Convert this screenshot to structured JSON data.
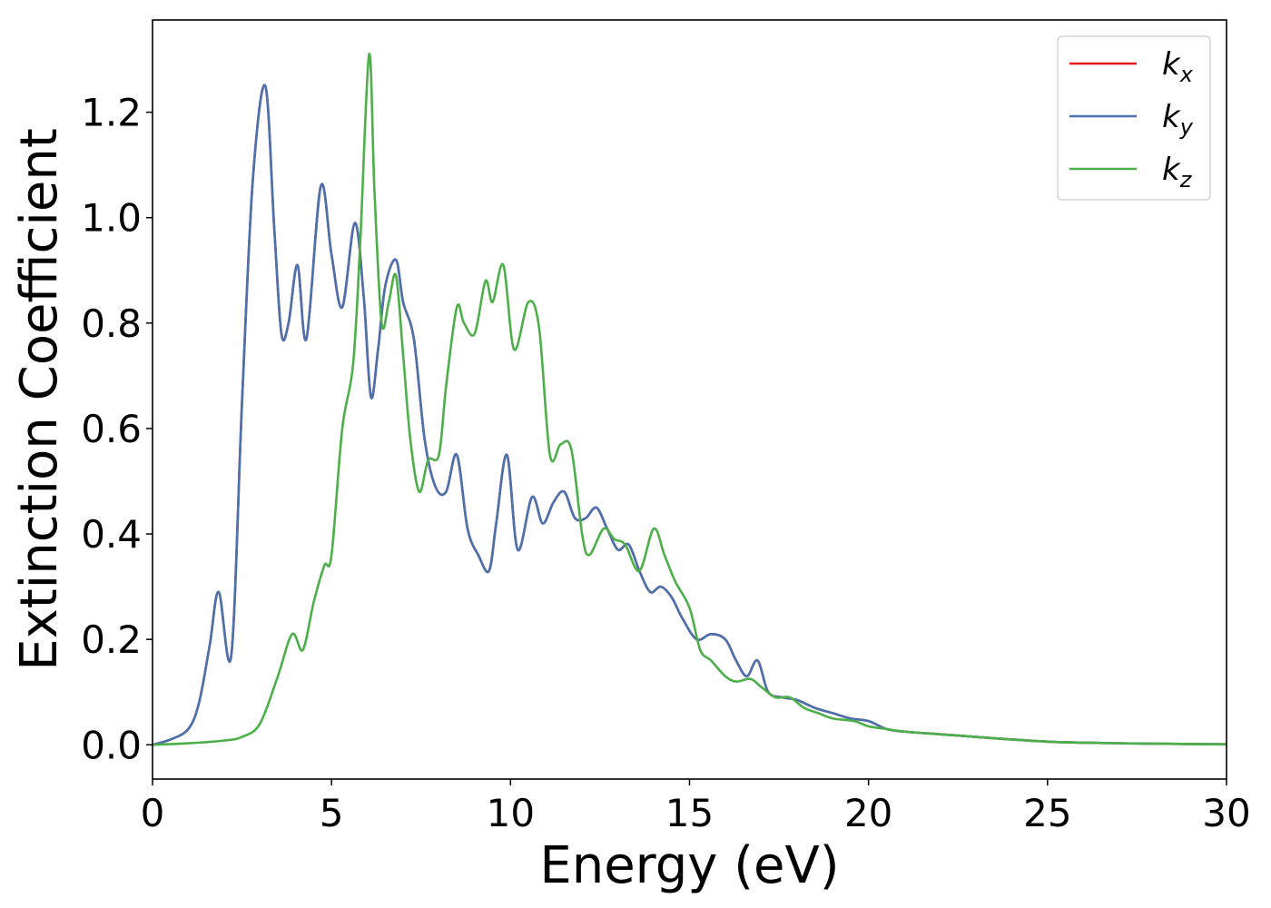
{
  "chart_data": {
    "type": "line",
    "xlabel": "Energy (eV)",
    "ylabel": "Extinction Coefficient",
    "xlim": [
      0,
      30
    ],
    "ylim": [
      -0.065,
      1.375
    ],
    "xticks": [
      0,
      5,
      10,
      15,
      20,
      25,
      30
    ],
    "xtick_labels": [
      "0",
      "5",
      "10",
      "15",
      "20",
      "25",
      "30"
    ],
    "yticks": [
      0.0,
      0.2,
      0.4,
      0.6,
      0.8,
      1.0,
      1.2
    ],
    "ytick_labels": [
      "0.0",
      "0.2",
      "0.4",
      "0.6",
      "0.8",
      "1.0",
      "1.2"
    ],
    "grid": false,
    "legend_position": "top-right",
    "series": [
      {
        "name": "k_x",
        "label_main": "k",
        "label_sub": "x",
        "color": "#e41a1c",
        "x": [
          0,
          0.5,
          1.0,
          1.3,
          1.6,
          1.85,
          2.2,
          2.5,
          2.8,
          3.15,
          3.4,
          3.6,
          3.8,
          4.05,
          4.3,
          4.7,
          5.0,
          5.3,
          5.65,
          5.9,
          6.1,
          6.3,
          6.5,
          6.8,
          7.0,
          7.3,
          7.6,
          7.9,
          8.2,
          8.5,
          8.8,
          9.1,
          9.4,
          9.6,
          9.9,
          10.2,
          10.6,
          10.9,
          11.2,
          11.5,
          11.8,
          12.1,
          12.4,
          12.7,
          13.0,
          13.3,
          13.6,
          13.9,
          14.2,
          14.5,
          14.8,
          15.2,
          15.6,
          16.0,
          16.3,
          16.6,
          16.9,
          17.2,
          17.6,
          18.0,
          18.5,
          19.0,
          19.5,
          20.0,
          20.5,
          21.0,
          22.0,
          23.0,
          24.0,
          25.0,
          26.0,
          28.0,
          30.0
        ],
        "values": [
          0,
          0.01,
          0.03,
          0.08,
          0.19,
          0.29,
          0.17,
          0.65,
          1.07,
          1.25,
          0.98,
          0.78,
          0.8,
          0.91,
          0.77,
          1.06,
          0.93,
          0.83,
          0.99,
          0.85,
          0.66,
          0.75,
          0.87,
          0.92,
          0.84,
          0.77,
          0.58,
          0.49,
          0.48,
          0.55,
          0.41,
          0.36,
          0.33,
          0.42,
          0.55,
          0.37,
          0.47,
          0.42,
          0.46,
          0.48,
          0.43,
          0.43,
          0.45,
          0.41,
          0.37,
          0.38,
          0.33,
          0.29,
          0.3,
          0.28,
          0.24,
          0.2,
          0.21,
          0.2,
          0.16,
          0.13,
          0.16,
          0.1,
          0.09,
          0.085,
          0.07,
          0.06,
          0.05,
          0.045,
          0.03,
          0.025,
          0.02,
          0.015,
          0.01,
          0.006,
          0.004,
          0.002,
          0.001
        ]
      },
      {
        "name": "k_y",
        "label_main": "k",
        "label_sub": "y",
        "color": "#4a72b0",
        "x": [
          0,
          0.5,
          1.0,
          1.3,
          1.6,
          1.85,
          2.2,
          2.5,
          2.8,
          3.15,
          3.4,
          3.6,
          3.8,
          4.05,
          4.3,
          4.7,
          5.0,
          5.3,
          5.65,
          5.9,
          6.1,
          6.3,
          6.5,
          6.8,
          7.0,
          7.3,
          7.6,
          7.9,
          8.2,
          8.5,
          8.8,
          9.1,
          9.4,
          9.6,
          9.9,
          10.2,
          10.6,
          10.9,
          11.2,
          11.5,
          11.8,
          12.1,
          12.4,
          12.7,
          13.0,
          13.3,
          13.6,
          13.9,
          14.2,
          14.5,
          14.8,
          15.2,
          15.6,
          16.0,
          16.3,
          16.6,
          16.9,
          17.2,
          17.6,
          18.0,
          18.5,
          19.0,
          19.5,
          20.0,
          20.5,
          21.0,
          22.0,
          23.0,
          24.0,
          25.0,
          26.0,
          28.0,
          30.0
        ],
        "values": [
          0,
          0.01,
          0.03,
          0.08,
          0.19,
          0.29,
          0.17,
          0.65,
          1.07,
          1.25,
          0.98,
          0.78,
          0.8,
          0.91,
          0.77,
          1.06,
          0.93,
          0.83,
          0.99,
          0.85,
          0.66,
          0.75,
          0.87,
          0.92,
          0.84,
          0.77,
          0.58,
          0.49,
          0.48,
          0.55,
          0.41,
          0.36,
          0.33,
          0.42,
          0.55,
          0.37,
          0.47,
          0.42,
          0.46,
          0.48,
          0.43,
          0.43,
          0.45,
          0.41,
          0.37,
          0.38,
          0.33,
          0.29,
          0.3,
          0.28,
          0.24,
          0.2,
          0.21,
          0.2,
          0.16,
          0.13,
          0.16,
          0.1,
          0.09,
          0.085,
          0.07,
          0.06,
          0.05,
          0.045,
          0.03,
          0.025,
          0.02,
          0.015,
          0.01,
          0.006,
          0.004,
          0.002,
          0.001
        ]
      },
      {
        "name": "k_z",
        "label_main": "k",
        "label_sub": "z",
        "color": "#4daf4a",
        "x": [
          0,
          1.0,
          2.0,
          2.5,
          3.0,
          3.5,
          3.9,
          4.2,
          4.5,
          4.8,
          5.0,
          5.3,
          5.6,
          5.8,
          6.05,
          6.2,
          6.4,
          6.6,
          6.8,
          7.0,
          7.2,
          7.45,
          7.7,
          8.0,
          8.2,
          8.5,
          8.7,
          9.0,
          9.3,
          9.5,
          9.8,
          10.1,
          10.5,
          10.8,
          11.1,
          11.4,
          11.7,
          12.0,
          12.2,
          12.6,
          12.9,
          13.2,
          13.6,
          14.0,
          14.3,
          14.6,
          15.0,
          15.3,
          15.6,
          16.0,
          16.3,
          16.7,
          17.0,
          17.4,
          17.8,
          18.2,
          18.6,
          19.0,
          19.6,
          20.0,
          20.5,
          21.0,
          22.0,
          23.0,
          24.0,
          25.0,
          26.0,
          28.0,
          30.0
        ],
        "values": [
          0,
          0.003,
          0.008,
          0.015,
          0.04,
          0.13,
          0.21,
          0.18,
          0.27,
          0.34,
          0.36,
          0.6,
          0.72,
          0.95,
          1.31,
          1.05,
          0.8,
          0.84,
          0.89,
          0.74,
          0.58,
          0.48,
          0.54,
          0.55,
          0.68,
          0.83,
          0.8,
          0.78,
          0.88,
          0.84,
          0.91,
          0.75,
          0.84,
          0.79,
          0.55,
          0.57,
          0.56,
          0.4,
          0.36,
          0.41,
          0.39,
          0.38,
          0.33,
          0.41,
          0.36,
          0.31,
          0.26,
          0.18,
          0.16,
          0.13,
          0.12,
          0.125,
          0.11,
          0.09,
          0.09,
          0.07,
          0.06,
          0.05,
          0.045,
          0.035,
          0.03,
          0.025,
          0.02,
          0.015,
          0.01,
          0.006,
          0.004,
          0.002,
          0.001
        ]
      }
    ]
  }
}
